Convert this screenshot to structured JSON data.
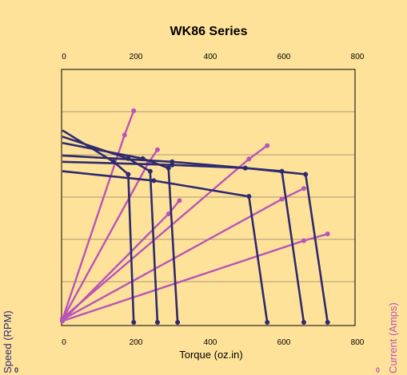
{
  "chart_data": {
    "type": "line",
    "title": "WK86 Series",
    "xlabel": "Torque (oz.in)",
    "ylabel_left": "Speed (RPM)",
    "ylabel_right": "Current (Amps)",
    "x_ticks": [
      "0",
      "200",
      "400",
      "600",
      "800"
    ],
    "y_left_tick_visible": "0",
    "y_right_tick_visible": "0",
    "xlim": [
      0,
      800
    ],
    "grid": true,
    "colors": {
      "speed": "#2E2A6E",
      "current": "#B854B8",
      "frame": "#000000"
    },
    "speed_curves": [
      {
        "points": [
          [
            0,
            3050
          ],
          [
            140,
            2550
          ],
          [
            180,
            2350
          ],
          [
            195,
            0
          ]
        ]
      },
      {
        "points": [
          [
            0,
            2950
          ],
          [
            180,
            2600
          ],
          [
            240,
            2400
          ],
          [
            260,
            0
          ]
        ]
      },
      {
        "points": [
          [
            0,
            2850
          ],
          [
            220,
            2600
          ],
          [
            290,
            2450
          ],
          [
            315,
            0
          ]
        ]
      },
      {
        "points": [
          [
            0,
            2650
          ],
          [
            300,
            2550
          ],
          [
            500,
            2450
          ],
          [
            600,
            2400
          ],
          [
            660,
            0
          ]
        ]
      },
      {
        "points": [
          [
            0,
            2550
          ],
          [
            300,
            2500
          ],
          [
            500,
            2450
          ],
          [
            665,
            2350
          ],
          [
            725,
            0
          ]
        ]
      },
      {
        "points": [
          [
            0,
            2400
          ],
          [
            250,
            2250
          ],
          [
            510,
            2000
          ],
          [
            560,
            0
          ]
        ]
      }
    ],
    "current_curves": [
      {
        "points": [
          [
            0,
            0.2
          ],
          [
            170,
            14.0
          ],
          [
            195,
            15.8
          ]
        ]
      },
      {
        "points": [
          [
            0,
            0.2
          ],
          [
            235,
            11.9
          ],
          [
            260,
            12.9
          ]
        ]
      },
      {
        "points": [
          [
            0,
            0.1
          ],
          [
            290,
            8.1
          ],
          [
            320,
            9.1
          ]
        ]
      },
      {
        "points": [
          [
            0,
            0.3
          ],
          [
            510,
            12.2
          ],
          [
            560,
            13.2
          ]
        ]
      },
      {
        "points": [
          [
            0,
            0.2
          ],
          [
            600,
            9.2
          ],
          [
            660,
            10.0
          ]
        ]
      },
      {
        "points": [
          [
            0,
            0.1
          ],
          [
            660,
            6.1
          ],
          [
            725,
            6.6
          ]
        ]
      }
    ]
  }
}
